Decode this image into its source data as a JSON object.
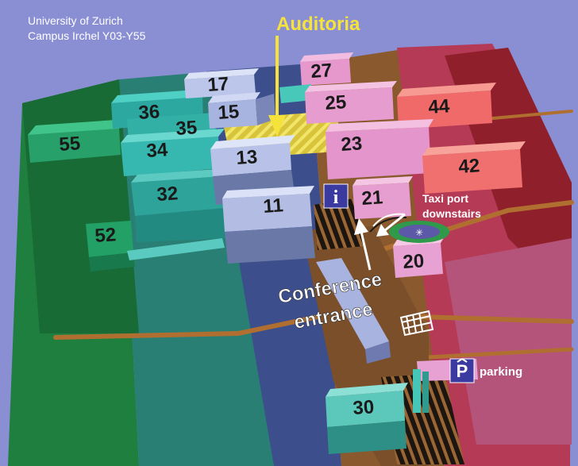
{
  "header": {
    "line1": "University of Zurich",
    "line2": "Campus Irchel Y03-Y55"
  },
  "labels": {
    "auditoria": "Auditoria",
    "taxi_line1": "Taxi port",
    "taxi_line2": "downstairs",
    "conference_line1": "Conference",
    "conference_line2": "entrance",
    "parking": "parking",
    "info_symbol": "i",
    "parking_symbol": "P"
  },
  "buildings": {
    "b11": "11",
    "b13": "13",
    "b15": "15",
    "b17": "17",
    "b20": "20",
    "b21": "21",
    "b23": "23",
    "b25": "25",
    "b27": "27",
    "b30": "30",
    "b32": "32",
    "b34": "34",
    "b35": "35",
    "b36": "36",
    "b42": "42",
    "b44": "44",
    "b52": "52",
    "b55": "55"
  },
  "colors": {
    "background": "#8a8fd4",
    "auditoria_label": "#f5e23a",
    "info_sign": "#3a3aa0"
  }
}
